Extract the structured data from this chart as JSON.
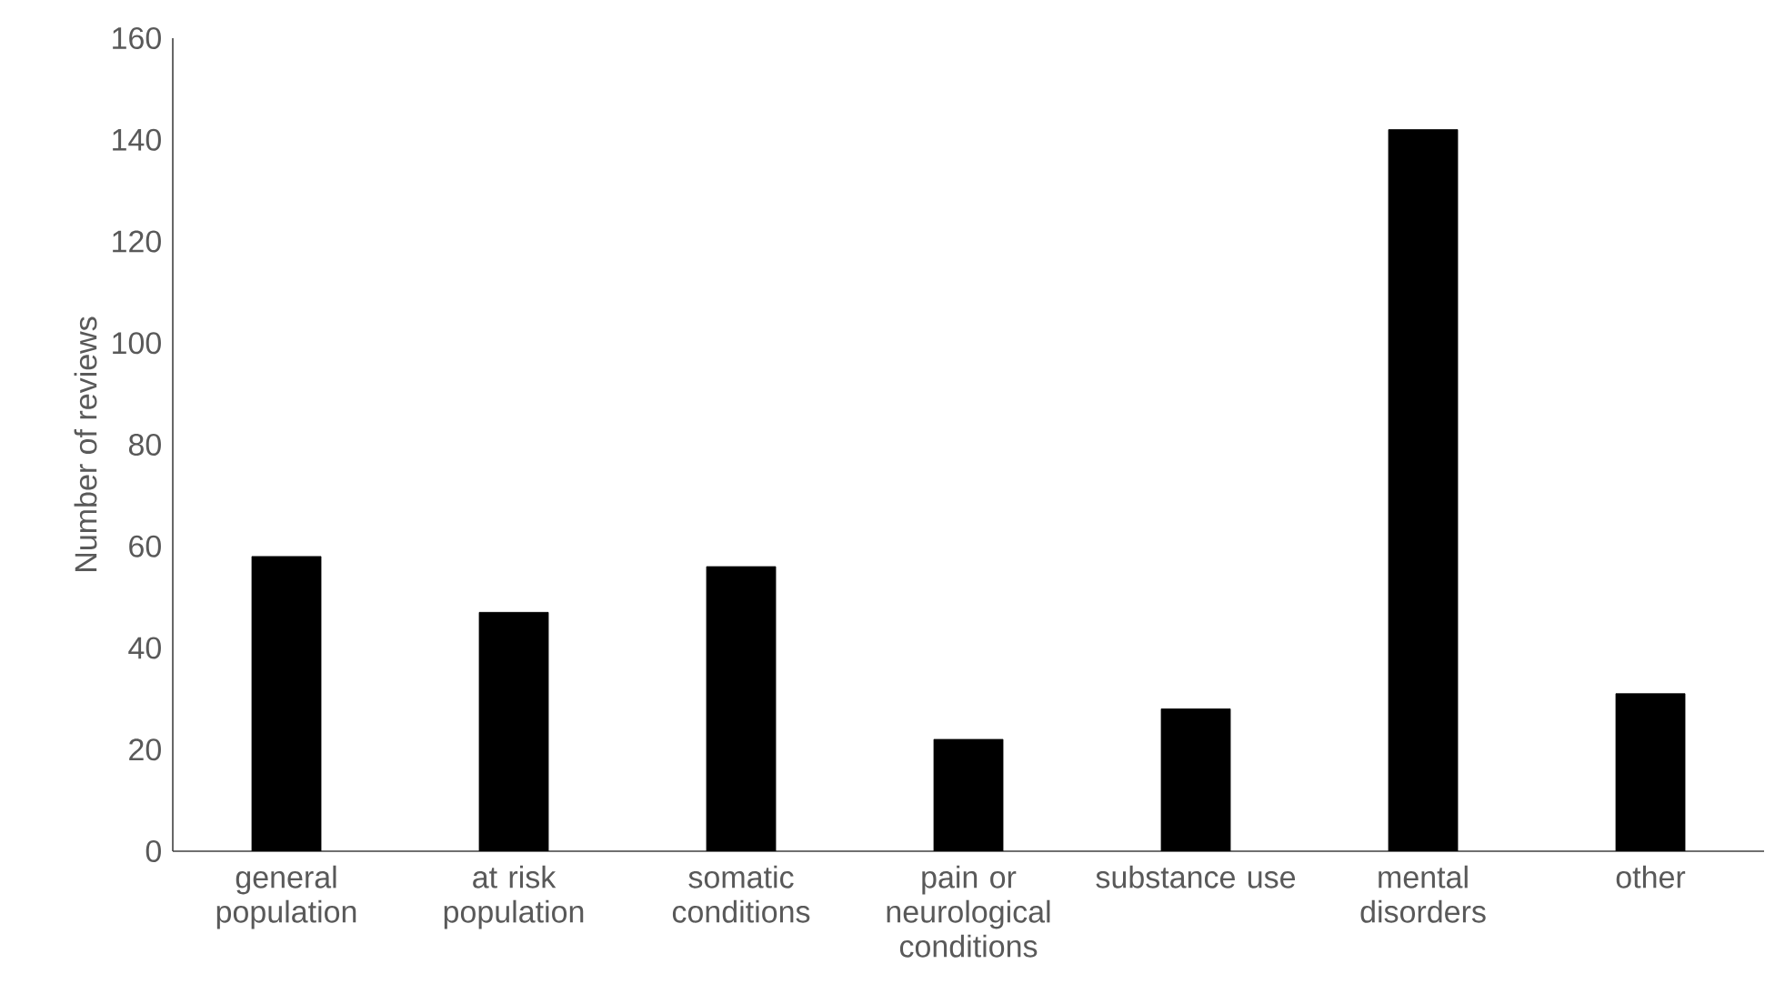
{
  "chart_data": {
    "type": "bar",
    "ylabel": "Number of reviews",
    "categories": [
      "general population",
      "at risk population",
      "somatic conditions",
      "pain or neurological conditions",
      "substance use",
      "mental disorders",
      "other"
    ],
    "values": [
      58,
      47,
      56,
      22,
      28,
      142,
      31
    ],
    "color": "#000000",
    "ylim": [
      0,
      160
    ],
    "yticks": [
      0,
      20,
      40,
      60,
      80,
      100,
      120,
      140,
      160
    ],
    "grid": false,
    "legend": false
  }
}
